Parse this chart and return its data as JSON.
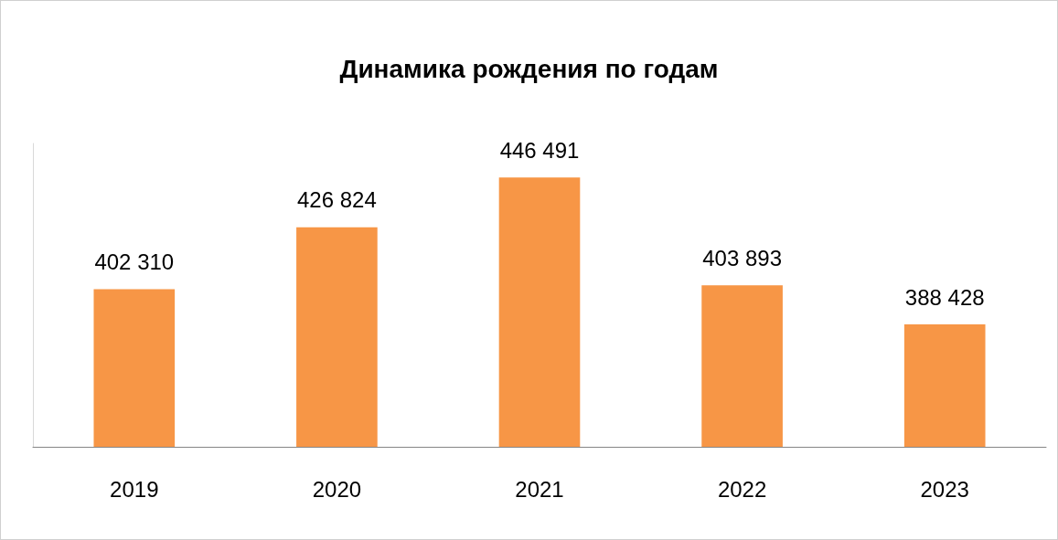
{
  "chart_data": {
    "type": "bar",
    "title": "Динамика рождения по годам",
    "categories": [
      "2019",
      "2020",
      "2021",
      "2022",
      "2023"
    ],
    "values": [
      402310,
      426824,
      446491,
      403893,
      388428
    ],
    "color": "#f79646",
    "ylim": [
      340000,
      460000
    ],
    "data_labels": true,
    "grid": false
  }
}
